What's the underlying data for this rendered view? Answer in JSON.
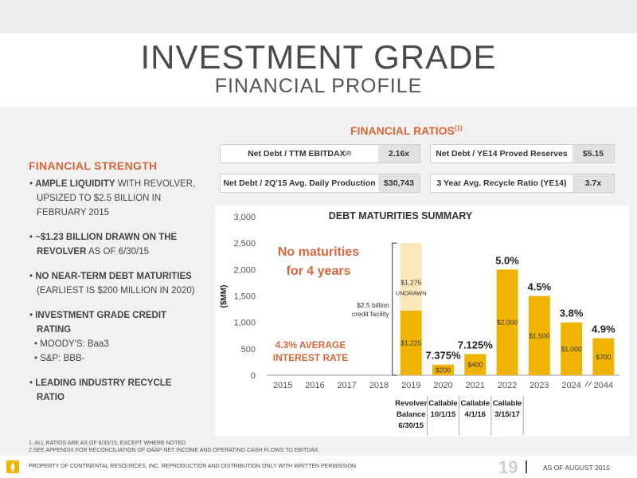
{
  "title": "INVESTMENT GRADE",
  "subtitle": "FINANCIAL PROFILE",
  "strength": {
    "heading": "FINANCIAL STRENGTH",
    "items": [
      {
        "bold": "AMPLE LIQUIDITY",
        "rest": " WITH REVOLVER, UPSIZED TO $2.5 BILLION IN FEBRUARY 2015"
      },
      {
        "bold": "~$1.23 BILLION DRAWN ON THE REVOLVER",
        "rest": " AS OF 6/30/15"
      },
      {
        "bold": "NO NEAR-TERM DEBT MATURITIES",
        "rest": " (EARLIEST IS $200 MILLION IN 2020)"
      },
      {
        "bold": "INVESTMENT GRADE CREDIT RATING",
        "rest": ""
      },
      {
        "sub": "MOODY'S: Baa3"
      },
      {
        "sub": "S&P: BBB-"
      },
      {
        "bold": "LEADING INDUSTRY RECYCLE RATIO",
        "rest": ""
      }
    ]
  },
  "ratios": {
    "heading": "FINANCIAL RATIOS",
    "heading_sup": "(1)",
    "items": [
      {
        "label": "Net Debt / TTM EBITDAX",
        "sup": "(2)",
        "value": "2.16x"
      },
      {
        "label": "Net Debt / YE14 Proved Reserves",
        "sup": "",
        "value": "$5.15"
      },
      {
        "label": "Net Debt / 2Q'15 Avg. Daily Production",
        "sup": "",
        "value": "$30,743"
      },
      {
        "label": "3 Year Avg. Recycle Ratio (YE14)",
        "sup": "",
        "value": "3.7x"
      }
    ]
  },
  "chart_data": {
    "type": "bar",
    "title": "DEBT MATURITIES SUMMARY",
    "ylabel": "($MM)",
    "ylim": [
      0,
      3000
    ],
    "yticks": [
      "0",
      "500",
      "1,000",
      "1,500",
      "2,000",
      "2,500",
      "3,000"
    ],
    "ytick_values": [
      0,
      500,
      1000,
      1500,
      2000,
      2500,
      3000
    ],
    "categories": [
      "2015",
      "2016",
      "2017",
      "2018",
      "2019",
      "2020",
      "2021",
      "2022",
      "2023",
      "2024",
      "2044"
    ],
    "series": [
      {
        "values": [
          0,
          0,
          0,
          0,
          1225,
          200,
          400,
          2000,
          1500,
          1000,
          700
        ],
        "color": "#f0b400"
      },
      {
        "values": [
          0,
          0,
          0,
          0,
          1275,
          0,
          0,
          0,
          0,
          0,
          0
        ],
        "color": "#fbe7b8"
      }
    ],
    "value_labels": [
      "",
      "",
      "",
      "",
      "$1,225",
      "$200",
      "$400",
      "$2,000",
      "$1,500",
      "$1,000",
      "$700"
    ],
    "undrawn_label": "$1,275",
    "undrawn_text": "UNDRAWN",
    "rates": [
      "",
      "",
      "",
      "",
      "",
      "7.375%",
      "7.125%",
      "5.0%",
      "4.5%",
      "3.8%",
      "4.9%"
    ],
    "facility_label": [
      "$2.5 billion",
      "credit facility"
    ],
    "callouts": {
      "no_maturities": [
        "No maturities",
        "for 4 years"
      ],
      "avg_rate": [
        "4.3% AVERAGE",
        "INTEREST RATE"
      ]
    },
    "footer_labels": [
      {
        "cat": "2019",
        "lines": [
          "Revolver",
          "Balance",
          "6/30/15"
        ]
      },
      {
        "cat": "2020",
        "lines": [
          "Callable",
          "10/1/15"
        ]
      },
      {
        "cat": "2021",
        "lines": [
          "Callable",
          "4/1/16"
        ]
      },
      {
        "cat": "2022",
        "lines": [
          "Callable",
          "3/15/17"
        ]
      }
    ],
    "colors": {
      "drawn": "#f0b400",
      "undrawn": "#fbe7b8",
      "callout": "#d9663a",
      "rate": "#222222"
    }
  },
  "footnotes": [
    "1. ALL RATIOS ARE AS OF 6/30/15, EXCEPT WHERE NOTED",
    "2.SEE APPENDIX FOR RECONCILIATION OF GAAP NET INCOME AND OPERATING CASH FLOWS TO EBITDAX."
  ],
  "footer": {
    "property": "PROPERTY OF CONTINENTAL RESOURCES, INC. REPRODUCTION AND DISTRIBUTION ONLY WITH WRITTEN PERMISSION",
    "page": "19",
    "as_of": "AS OF AUGUST 2015"
  }
}
